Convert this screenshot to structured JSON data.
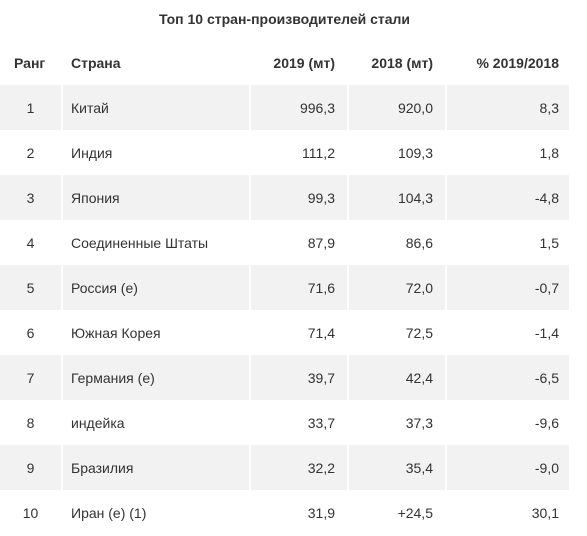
{
  "table": {
    "title": "Топ 10 стран-производителей стали",
    "header": [
      "Ранг",
      "Страна",
      "2019 (мт)",
      "2018 (мт)",
      "% 2019/2018"
    ],
    "rows": [
      [
        "1",
        "Китай",
        "996,3",
        "920,0",
        "8,3"
      ],
      [
        "2",
        "Индия",
        "111,2",
        "109,3",
        "1,8"
      ],
      [
        "3",
        "Япония",
        "99,3",
        "104,3",
        "-4,8"
      ],
      [
        "4",
        "Соединенные Штаты",
        "87,9",
        "86,6",
        "1,5"
      ],
      [
        "5",
        "Россия (е)",
        "71,6",
        "72,0",
        "-0,7"
      ],
      [
        "6",
        "Южная Корея",
        "71,4",
        "72,5",
        "-1,4"
      ],
      [
        "7",
        "Германия (е)",
        "39,7",
        "42,4",
        "-6,5"
      ],
      [
        "8",
        "индейка",
        "33,7",
        "37,3",
        "-9,6"
      ],
      [
        "9",
        "Бразилия",
        "32,2",
        "35,4",
        "-9,0"
      ],
      [
        "10",
        "Иран (е) (1)",
        "31,9",
        "+24,5",
        "30,1"
      ]
    ]
  }
}
